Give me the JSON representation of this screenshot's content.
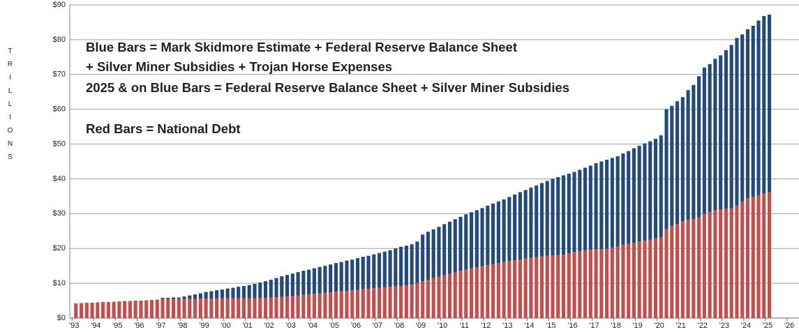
{
  "chart_data": {
    "type": "stacked-bar",
    "ylabel": "TRILLIONS",
    "annotations": [
      {
        "text": "Blue Bars = Mark Skidmore Estimate + Federal Reserve Balance Sheet",
        "color": "#1f3b66"
      },
      {
        "text": "+ Silver Miner Subsidies + Trojan Horse Expenses",
        "color": "#1f3b66"
      },
      {
        "text": "2025 & on Blue Bars = Federal Reserve Balance Sheet + Silver Miner Subsidies",
        "color": "#1f3b66"
      },
      {
        "text": "Red Bars = National Debt",
        "color": "#e00000"
      }
    ],
    "x": [
      1993,
      1993.25,
      1993.5,
      1993.75,
      1994,
      1994.25,
      1994.5,
      1994.75,
      1995,
      1995.25,
      1995.5,
      1995.75,
      1996,
      1996.25,
      1996.5,
      1996.75,
      1997,
      1997.25,
      1997.5,
      1997.75,
      1998,
      1998.25,
      1998.5,
      1998.75,
      1999,
      1999.25,
      1999.5,
      1999.75,
      2000,
      2000.25,
      2000.5,
      2000.75,
      2001,
      2001.25,
      2001.5,
      2001.75,
      2002,
      2002.25,
      2002.5,
      2002.75,
      2003,
      2003.25,
      2003.5,
      2003.75,
      2004,
      2004.25,
      2004.5,
      2004.75,
      2005,
      2005.25,
      2005.5,
      2005.75,
      2006,
      2006.25,
      2006.5,
      2006.75,
      2007,
      2007.25,
      2007.5,
      2007.75,
      2008,
      2008.25,
      2008.5,
      2008.75,
      2009,
      2009.25,
      2009.5,
      2009.75,
      2010,
      2010.25,
      2010.5,
      2010.75,
      2011,
      2011.25,
      2011.5,
      2011.75,
      2012,
      2012.25,
      2012.5,
      2012.75,
      2013,
      2013.25,
      2013.5,
      2013.75,
      2014,
      2014.25,
      2014.5,
      2014.75,
      2015,
      2015.25,
      2015.5,
      2015.75,
      2016,
      2016.25,
      2016.5,
      2016.75,
      2017,
      2017.25,
      2017.5,
      2017.75,
      2018,
      2018.25,
      2018.5,
      2018.75,
      2019,
      2019.25,
      2019.5,
      2019.75,
      2020,
      2020.25,
      2020.5,
      2020.75,
      2021,
      2021.25,
      2021.5,
      2021.75,
      2022,
      2022.25,
      2022.5,
      2022.75,
      2023,
      2023.25,
      2023.5,
      2023.75,
      2024,
      2024.25,
      2024.5,
      2024.75,
      2025
    ],
    "series": [
      {
        "color": "#c0504d",
        "values": [
          4.2,
          4.3,
          4.4,
          4.4,
          4.5,
          4.6,
          4.6,
          4.7,
          4.8,
          4.9,
          4.9,
          5.0,
          5.0,
          5.1,
          5.2,
          5.3,
          5.4,
          5.4,
          5.4,
          5.5,
          5.5,
          5.5,
          5.5,
          5.6,
          5.6,
          5.6,
          5.6,
          5.7,
          5.7,
          5.7,
          5.7,
          5.7,
          5.7,
          5.7,
          5.8,
          5.8,
          5.9,
          6.0,
          6.1,
          6.2,
          6.3,
          6.5,
          6.7,
          6.8,
          7.0,
          7.1,
          7.3,
          7.4,
          7.6,
          7.7,
          7.8,
          8.0,
          8.1,
          8.3,
          8.4,
          8.6,
          8.7,
          8.8,
          9.0,
          9.1,
          9.2,
          9.4,
          9.7,
          10.1,
          10.6,
          11.0,
          11.5,
          11.9,
          12.3,
          12.7,
          13.1,
          13.6,
          14.0,
          14.3,
          14.6,
          14.9,
          15.2,
          15.5,
          15.8,
          16.1,
          16.4,
          16.6,
          16.8,
          17.1,
          17.3,
          17.5,
          17.7,
          17.9,
          18.0,
          18.1,
          18.2,
          18.6,
          19.0,
          19.2,
          19.4,
          19.6,
          19.8,
          19.8,
          19.9,
          20.2,
          20.5,
          21.0,
          21.3,
          21.6,
          22.0,
          22.2,
          22.5,
          22.9,
          23.2,
          25.5,
          26.5,
          27.0,
          27.8,
          28.2,
          28.4,
          28.9,
          30.0,
          30.4,
          30.9,
          31.2,
          31.4,
          31.5,
          32.3,
          33.5,
          34.5,
          34.8,
          35.3,
          35.8,
          36.2
        ]
      },
      {
        "color": "#234a78",
        "values": [
          0,
          0,
          0,
          0,
          0,
          0,
          0,
          0,
          0,
          0,
          0,
          0,
          0,
          0,
          0,
          0,
          0.4,
          0.4,
          0.5,
          0.4,
          0.7,
          1.0,
          1.3,
          1.5,
          1.9,
          2.1,
          2.4,
          2.5,
          2.8,
          3.0,
          3.3,
          3.5,
          3.8,
          4.1,
          4.4,
          4.8,
          5.1,
          5.5,
          5.9,
          6.2,
          6.5,
          6.7,
          6.9,
          7.1,
          7.3,
          7.6,
          7.7,
          8.0,
          8.2,
          8.4,
          8.7,
          8.8,
          9.1,
          9.3,
          9.5,
          9.7,
          10.0,
          10.3,
          10.5,
          10.9,
          11.3,
          11.4,
          11.5,
          11.9,
          13.4,
          13.8,
          14.0,
          14.3,
          14.7,
          15.0,
          15.3,
          15.5,
          15.8,
          16.1,
          16.4,
          16.7,
          17.1,
          17.4,
          17.7,
          18.0,
          18.4,
          18.9,
          19.4,
          19.7,
          20.2,
          20.6,
          21.1,
          21.5,
          22.0,
          22.4,
          22.8,
          22.9,
          23.0,
          23.4,
          23.8,
          24.2,
          24.7,
          25.2,
          25.6,
          25.8,
          26.0,
          26.3,
          26.7,
          27.2,
          27.5,
          28.0,
          28.3,
          28.6,
          29.3,
          34.5,
          34.5,
          35.3,
          35.7,
          37.3,
          38.6,
          40.6,
          42.0,
          42.6,
          43.6,
          44.3,
          45.6,
          47.0,
          48.2,
          48.0,
          48.5,
          49.2,
          50.2,
          51.0,
          51.0
        ]
      }
    ],
    "xlim": [
      1992.8,
      2026.45
    ],
    "xticks": [
      {
        "value": 1993,
        "label": "'93"
      },
      {
        "value": 1994,
        "label": "'94"
      },
      {
        "value": 1995,
        "label": "'95"
      },
      {
        "value": 1996,
        "label": "'96"
      },
      {
        "value": 1997,
        "label": "'97"
      },
      {
        "value": 1998,
        "label": "'98"
      },
      {
        "value": 1999,
        "label": "'99"
      },
      {
        "value": 2000,
        "label": "'00"
      },
      {
        "value": 2001,
        "label": "'01"
      },
      {
        "value": 2002,
        "label": "'02"
      },
      {
        "value": 2003,
        "label": "'03"
      },
      {
        "value": 2004,
        "label": "'04"
      },
      {
        "value": 2005,
        "label": "'05"
      },
      {
        "value": 2006,
        "label": "'06"
      },
      {
        "value": 2007,
        "label": "'07"
      },
      {
        "value": 2008,
        "label": "'08"
      },
      {
        "value": 2009,
        "label": "'09"
      },
      {
        "value": 2010,
        "label": "'10"
      },
      {
        "value": 2011,
        "label": "'11"
      },
      {
        "value": 2012,
        "label": "'12"
      },
      {
        "value": 2013,
        "label": "'13"
      },
      {
        "value": 2014,
        "label": "'14"
      },
      {
        "value": 2015,
        "label": "'15"
      },
      {
        "value": 2016,
        "label": "'16"
      },
      {
        "value": 2017,
        "label": "'17"
      },
      {
        "value": 2018,
        "label": "'18"
      },
      {
        "value": 2019,
        "label": "'19"
      },
      {
        "value": 2020,
        "label": "'20"
      },
      {
        "value": 2021,
        "label": "'21"
      },
      {
        "value": 2022,
        "label": "'22"
      },
      {
        "value": 2023,
        "label": "'23"
      },
      {
        "value": 2024,
        "label": "'24"
      },
      {
        "value": 2025,
        "label": "'25"
      },
      {
        "value": 2026,
        "label": "'26"
      }
    ],
    "ylim": [
      0,
      90
    ],
    "yticks": [
      {
        "value": 0,
        "label": "$0"
      },
      {
        "value": 10,
        "label": "$10"
      },
      {
        "value": 20,
        "label": "$20"
      },
      {
        "value": 30,
        "label": "$30"
      },
      {
        "value": 40,
        "label": "$40"
      },
      {
        "value": 50,
        "label": "$50"
      },
      {
        "value": 60,
        "label": "$60"
      },
      {
        "value": 70,
        "label": "$70"
      },
      {
        "value": 80,
        "label": "$80"
      },
      {
        "value": 90,
        "label": "$90"
      }
    ],
    "grid": true
  }
}
